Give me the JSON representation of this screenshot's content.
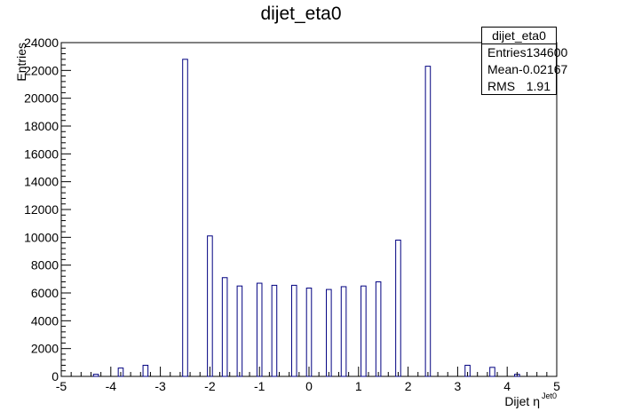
{
  "chart_data": {
    "type": "bar",
    "title": "dijet_eta0",
    "xlabel": "Dijet η",
    "xlabel_sup": "Jet0",
    "ylabel": "Entries",
    "xlim": [
      -5,
      5
    ],
    "ylim": [
      0,
      24000
    ],
    "x_ticks": [
      "-5",
      "-4",
      "-3",
      "-2",
      "-1",
      "0",
      "1",
      "2",
      "3",
      "4",
      "5"
    ],
    "y_ticks": [
      "0",
      "2000",
      "4000",
      "6000",
      "8000",
      "10000",
      "12000",
      "14000",
      "16000",
      "18000",
      "20000",
      "22000",
      "24000"
    ],
    "bin_width": 0.1,
    "bins": [
      {
        "x": -4.3,
        "value": 150
      },
      {
        "x": -3.8,
        "value": 600
      },
      {
        "x": -3.3,
        "value": 800
      },
      {
        "x": -2.5,
        "value": 22800
      },
      {
        "x": -2.0,
        "value": 10100
      },
      {
        "x": -1.7,
        "value": 7100
      },
      {
        "x": -1.4,
        "value": 6500
      },
      {
        "x": -1.0,
        "value": 6700
      },
      {
        "x": -0.7,
        "value": 6550
      },
      {
        "x": -0.3,
        "value": 6550
      },
      {
        "x": 0.0,
        "value": 6350
      },
      {
        "x": 0.4,
        "value": 6250
      },
      {
        "x": 0.7,
        "value": 6450
      },
      {
        "x": 1.1,
        "value": 6500
      },
      {
        "x": 1.4,
        "value": 6800
      },
      {
        "x": 1.8,
        "value": 9800
      },
      {
        "x": 2.4,
        "value": 22300
      },
      {
        "x": 3.2,
        "value": 800
      },
      {
        "x": 3.7,
        "value": 650
      },
      {
        "x": 4.2,
        "value": 150
      }
    ],
    "legend_position": "top-right",
    "grid": false,
    "bar_color": "#000080"
  },
  "stats": {
    "title": "dijet_eta0",
    "rows": [
      {
        "label": "Entries",
        "value": "134600"
      },
      {
        "label": "Mean",
        "value": "-0.02167"
      },
      {
        "label": "RMS",
        "value": "1.91"
      }
    ]
  }
}
